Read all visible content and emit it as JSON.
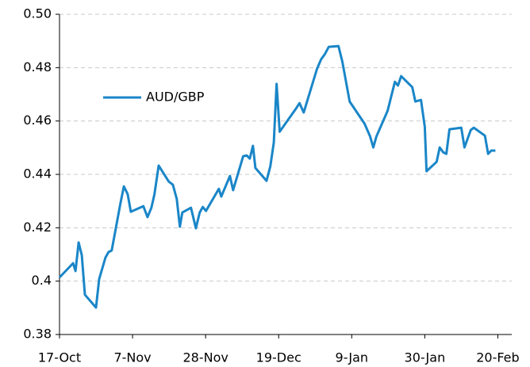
{
  "chart_data": {
    "type": "line",
    "x": [
      0,
      3.9,
      4.6,
      5.5,
      6.4,
      7.3,
      10.5,
      11.4,
      13.2,
      14.1,
      15,
      17.5,
      18.5,
      19.6,
      20.5,
      24.1,
      25.3,
      26.4,
      27.3,
      28.5,
      31.4,
      32.6,
      33.7,
      34.6,
      35.3,
      37.8,
      39.2,
      40.3,
      41.2,
      42.1,
      45.8,
      46.5,
      49,
      49.9,
      52.8,
      53.8,
      54.7,
      55.6,
      56.3,
      59.5,
      60.6,
      61.6,
      62.4,
      63.3,
      68.1,
      69,
      70.2,
      74,
      75.2,
      76.3,
      77.4,
      80.2,
      81.3,
      83.4,
      87.7,
      89.3,
      90.2,
      91.1,
      94.3,
      96.4,
      97.3,
      98.2,
      101.4,
      102.3,
      103.9,
      105,
      105.5,
      108.4,
      109.3,
      110.3,
      111.2,
      112.1,
      115.5,
      116.4,
      118.2,
      119.1,
      122.3,
      123.2,
      124.1,
      125.3
    ],
    "series": [
      {
        "name": "AUD/GBP",
        "color": "#1a86c8",
        "values": [
          0.4014,
          0.4067,
          0.4038,
          0.4145,
          0.4097,
          0.3949,
          0.3901,
          0.4008,
          0.4088,
          0.4109,
          0.4115,
          0.429,
          0.4355,
          0.4326,
          0.426,
          0.4281,
          0.424,
          0.4275,
          0.4326,
          0.4433,
          0.4373,
          0.4361,
          0.4308,
          0.4204,
          0.4257,
          0.4275,
          0.4198,
          0.4257,
          0.4278,
          0.4263,
          0.4346,
          0.4317,
          0.4394,
          0.4341,
          0.4468,
          0.4471,
          0.4459,
          0.4507,
          0.4424,
          0.4376,
          0.443,
          0.4519,
          0.4739,
          0.456,
          0.4649,
          0.4667,
          0.4632,
          0.4795,
          0.4831,
          0.4851,
          0.4878,
          0.4881,
          0.4822,
          0.4673,
          0.459,
          0.4542,
          0.4501,
          0.4542,
          0.4638,
          0.4747,
          0.4733,
          0.4768,
          0.4727,
          0.4673,
          0.4679,
          0.4578,
          0.4412,
          0.4447,
          0.4501,
          0.4483,
          0.4477,
          0.4569,
          0.4575,
          0.4501,
          0.4566,
          0.4575,
          0.4545,
          0.4477,
          0.4489,
          0.4489
        ]
      }
    ],
    "xlim": [
      0,
      130
    ],
    "xticks": [
      {
        "value": 0,
        "label": "17-Oct"
      },
      {
        "value": 21,
        "label": "7-Nov"
      },
      {
        "value": 42,
        "label": "28-Nov"
      },
      {
        "value": 63,
        "label": "19-Dec"
      },
      {
        "value": 84,
        "label": "9-Jan"
      },
      {
        "value": 105,
        "label": "30-Jan"
      },
      {
        "value": 126,
        "label": "20-Feb"
      }
    ],
    "ylim": [
      0.38,
      0.5
    ],
    "yticks": [
      0.38,
      0.4,
      0.42,
      0.44,
      0.46,
      0.48,
      {
        "value": 0.5,
        "label": "0.50"
      }
    ],
    "grid": true,
    "legend": "upper left"
  }
}
